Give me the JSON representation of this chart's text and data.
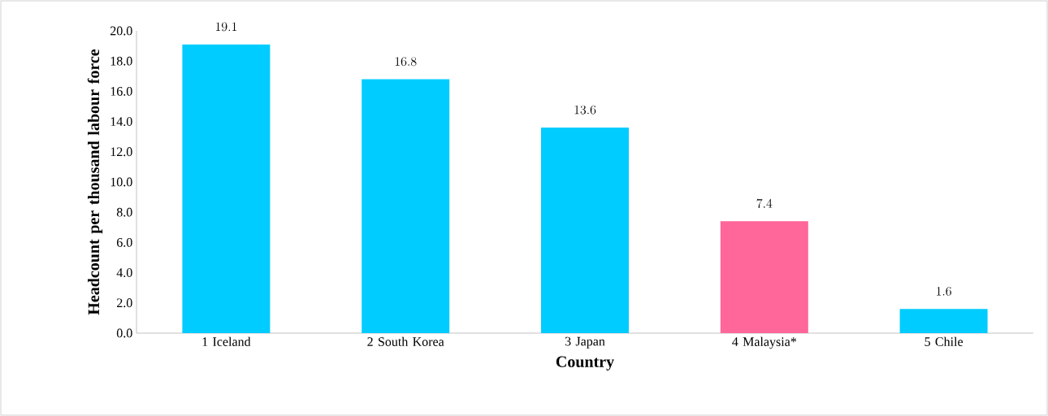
{
  "chart_data": {
    "type": "bar",
    "xlabel": "Country",
    "ylabel": "Headcount per thousand labour force",
    "categories": [
      "1 Iceland",
      "2 South Korea",
      "3 Japan",
      "4 Malaysia*",
      "5 Chile"
    ],
    "values": [
      19.1,
      16.8,
      13.6,
      7.4,
      1.6
    ],
    "colors": [
      "#00ccff",
      "#00ccff",
      "#00ccff",
      "#ff6699",
      "#00ccff"
    ],
    "ylim": [
      0,
      20
    ],
    "yticks": [
      {
        "value": 0,
        "label": "0.0"
      },
      {
        "value": 2,
        "label": "2.0"
      },
      {
        "value": 4,
        "label": "4.0"
      },
      {
        "value": 6,
        "label": "6.0"
      },
      {
        "value": 8,
        "label": "8.0"
      },
      {
        "value": 10,
        "label": "10.0"
      },
      {
        "value": 12,
        "label": "12.0"
      },
      {
        "value": 14,
        "label": "14.0"
      },
      {
        "value": 16,
        "label": "16.0"
      },
      {
        "value": 18,
        "label": "18.0"
      },
      {
        "value": 20,
        "label": "20.0"
      }
    ],
    "data_labels": true
  }
}
